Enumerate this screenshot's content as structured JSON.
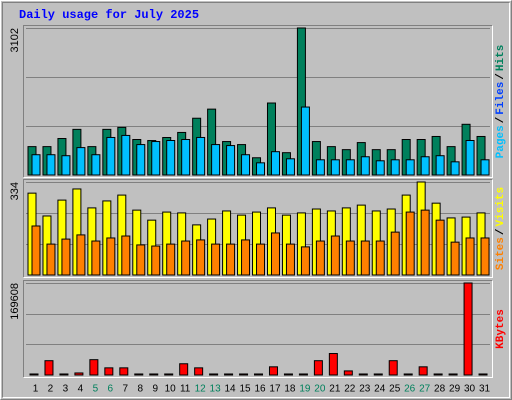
{
  "chart_data": [
    {
      "type": "bar",
      "title": "Daily usage for July 2025",
      "title_color": "#0000ff",
      "series": [
        {
          "name": "Hits",
          "color": "#00805c",
          "values": [
            599,
            599,
            770,
            963,
            599,
            963,
            1005,
            749,
            727,
            791,
            898,
            1198,
            1390,
            706,
            642,
            364,
            1519,
            471,
            3102,
            706,
            599,
            535,
            684,
            535,
            535,
            749,
            749,
            813,
            599,
            1070,
            813
          ]
        },
        {
          "name": "Files",
          "color": "#0040ff",
          "values": [
            0,
            0,
            0,
            0,
            0,
            0,
            0,
            0,
            0,
            0,
            0,
            0,
            0,
            0,
            0,
            0,
            0,
            0,
            0,
            0,
            0,
            0,
            0,
            0,
            0,
            0,
            0,
            0,
            0,
            0,
            0
          ]
        },
        {
          "name": "Pages",
          "color": "#00c0ff",
          "values": [
            428,
            428,
            407,
            578,
            428,
            792,
            835,
            642,
            706,
            728,
            749,
            792,
            642,
            621,
            428,
            257,
            492,
            342,
            1434,
            321,
            321,
            321,
            385,
            300,
            321,
            321,
            385,
            407,
            278,
            728,
            321
          ]
        }
      ],
      "ylim": [
        0,
        3102
      ],
      "yticks": [
        3102
      ],
      "legend_separator": "/"
    },
    {
      "type": "bar",
      "series": [
        {
          "name": "Visits",
          "color": "#ffff00",
          "values": [
            294,
            212,
            269,
            309,
            241,
            266,
            287,
            233,
            197,
            226,
            223,
            180,
            201,
            230,
            215,
            226,
            241,
            215,
            223,
            237,
            230,
            241,
            251,
            230,
            237,
            287,
            334,
            258,
            205,
            208,
            223
          ]
        },
        {
          "name": "Sites",
          "color": "#ff8000",
          "values": [
            176,
            111,
            129,
            144,
            122,
            133,
            140,
            108,
            104,
            111,
            122,
            126,
            111,
            111,
            126,
            111,
            151,
            111,
            101,
            122,
            140,
            122,
            122,
            122,
            154,
            226,
            233,
            197,
            118,
            133,
            133
          ]
        }
      ],
      "ylim": [
        0,
        334
      ],
      "yticks": [
        334
      ],
      "legend_separator": "/"
    },
    {
      "type": "bar",
      "series": [
        {
          "name": "KBytes",
          "color": "#ff0000",
          "values": [
            1900,
            26390,
            1900,
            3770,
            28275,
            13195,
            13195,
            1900,
            1900,
            1900,
            20735,
            13195,
            1900,
            1900,
            1900,
            1900,
            15080,
            1900,
            1900,
            26390,
            39585,
            7540,
            1900,
            1900,
            26390,
            1900,
            15080,
            1900,
            1900,
            169608,
            1900
          ]
        }
      ],
      "ylim": [
        0,
        169608
      ],
      "yticks": [
        169608
      ],
      "categories": [
        "1",
        "2",
        "3",
        "4",
        "5",
        "6",
        "7",
        "8",
        "9",
        "10",
        "11",
        "12",
        "13",
        "14",
        "15",
        "16",
        "17",
        "18",
        "19",
        "20",
        "21",
        "22",
        "23",
        "24",
        "25",
        "26",
        "27",
        "28",
        "29",
        "30",
        "31"
      ],
      "category_colors": [
        "#000000",
        "#000000",
        "#000000",
        "#000000",
        "#00805c",
        "#00805c",
        "#000000",
        "#000000",
        "#000000",
        "#000000",
        "#000000",
        "#00805c",
        "#00805c",
        "#000000",
        "#000000",
        "#000000",
        "#000000",
        "#000000",
        "#00805c",
        "#00805c",
        "#000000",
        "#000000",
        "#000000",
        "#000000",
        "#000000",
        "#00805c",
        "#00805c",
        "#000000",
        "#000000",
        "#000000",
        "#000000"
      ]
    }
  ]
}
